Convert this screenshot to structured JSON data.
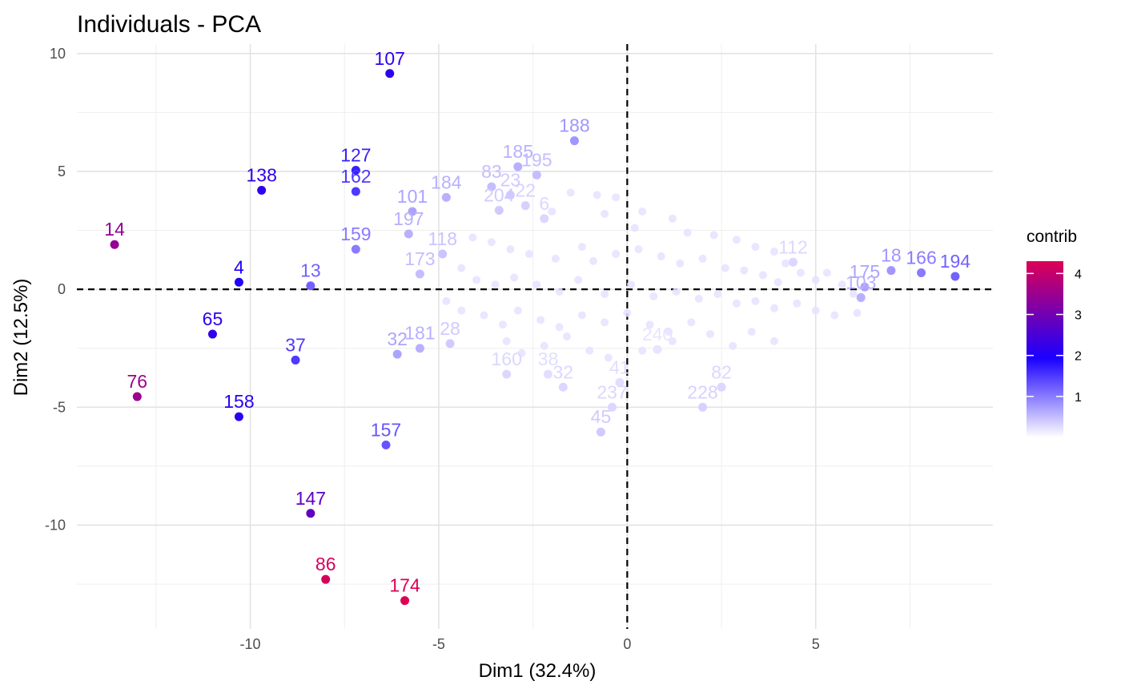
{
  "chart_data": {
    "type": "scatter",
    "title": "Individuals - PCA",
    "xlabel": "Dim1 (32.4%)",
    "ylabel": "Dim2 (12.5%)",
    "xlim": [
      -14.6,
      9.7
    ],
    "ylim": [
      -14.4,
      10.4
    ],
    "x_ticks": [
      -10,
      -5,
      0,
      5
    ],
    "y_ticks": [
      -10,
      -5,
      0,
      5,
      10
    ],
    "x_tick_labels": [
      "-10",
      "-5",
      "0",
      "5"
    ],
    "y_tick_labels": [
      "-10",
      "-5",
      "0",
      "5",
      "10"
    ],
    "grid": true,
    "reference_lines": {
      "x": 0,
      "y": 0,
      "style": "dashed"
    },
    "legend": {
      "title": "contrib",
      "position": "right",
      "range": [
        0,
        4.3
      ],
      "ticks": [
        1,
        2,
        3,
        4
      ],
      "tick_labels": [
        "1",
        "2",
        "3",
        "4"
      ],
      "gradient": [
        "#ffffff",
        "#1a00ff",
        "#dd0055"
      ]
    },
    "labeled_points": [
      {
        "label": "107",
        "x": -6.3,
        "y": 9.15,
        "contrib": 2.2
      },
      {
        "label": "188",
        "x": -1.4,
        "y": 6.3,
        "contrib": 0.8
      },
      {
        "label": "185",
        "x": -2.9,
        "y": 5.2,
        "contrib": 0.6
      },
      {
        "label": "195",
        "x": -2.4,
        "y": 4.85,
        "contrib": 0.5
      },
      {
        "label": "127",
        "x": -7.2,
        "y": 5.05,
        "contrib": 1.7
      },
      {
        "label": "162",
        "x": -7.2,
        "y": 4.15,
        "contrib": 1.5
      },
      {
        "label": "138",
        "x": -9.7,
        "y": 4.2,
        "contrib": 2.2
      },
      {
        "label": "184",
        "x": -4.8,
        "y": 3.9,
        "contrib": 0.6
      },
      {
        "label": "83",
        "x": -3.6,
        "y": 4.35,
        "contrib": 0.5
      },
      {
        "label": "23",
        "x": -3.1,
        "y": 4.0,
        "contrib": 0.4
      },
      {
        "label": "204",
        "x": -3.4,
        "y": 3.35,
        "contrib": 0.4
      },
      {
        "label": "22",
        "x": -2.7,
        "y": 3.55,
        "contrib": 0.35
      },
      {
        "label": "101",
        "x": -5.7,
        "y": 3.3,
        "contrib": 0.7
      },
      {
        "label": "197",
        "x": -5.8,
        "y": 2.35,
        "contrib": 0.6
      },
      {
        "label": "6",
        "x": -2.2,
        "y": 3.0,
        "contrib": 0.3
      },
      {
        "label": "14",
        "x": -13.6,
        "y": 1.9,
        "contrib": 3.4
      },
      {
        "label": "159",
        "x": -7.2,
        "y": 1.7,
        "contrib": 1.0
      },
      {
        "label": "118",
        "x": -4.9,
        "y": 1.5,
        "contrib": 0.45
      },
      {
        "label": "173",
        "x": -5.5,
        "y": 0.65,
        "contrib": 0.5
      },
      {
        "label": "4",
        "x": -10.3,
        "y": 0.3,
        "contrib": 2.0
      },
      {
        "label": "13",
        "x": -8.4,
        "y": 0.15,
        "contrib": 1.2
      },
      {
        "label": "65",
        "x": -11.0,
        "y": -1.9,
        "contrib": 2.2
      },
      {
        "label": "37",
        "x": -8.8,
        "y": -3.0,
        "contrib": 1.5
      },
      {
        "label": "32",
        "x": -6.1,
        "y": -2.75,
        "contrib": 0.7
      },
      {
        "label": "181",
        "x": -5.5,
        "y": -2.5,
        "contrib": 0.6
      },
      {
        "label": "28",
        "x": -4.7,
        "y": -2.3,
        "contrib": 0.4
      },
      {
        "label": "76",
        "x": -13.0,
        "y": -4.55,
        "contrib": 3.5
      },
      {
        "label": "158",
        "x": -10.3,
        "y": -5.4,
        "contrib": 2.1
      },
      {
        "label": "157",
        "x": -6.4,
        "y": -6.6,
        "contrib": 1.3
      },
      {
        "label": "147",
        "x": -8.4,
        "y": -9.5,
        "contrib": 2.8
      },
      {
        "label": "86",
        "x": -8.0,
        "y": -12.3,
        "contrib": 4.2
      },
      {
        "label": "174",
        "x": -5.9,
        "y": -13.2,
        "contrib": 4.3
      },
      {
        "label": "160",
        "x": -3.2,
        "y": -3.6,
        "contrib": 0.3
      },
      {
        "label": "38",
        "x": -2.1,
        "y": -3.6,
        "contrib": 0.25
      },
      {
        "label": "32",
        "x": -1.7,
        "y": -4.15,
        "contrib": 0.3
      },
      {
        "label": "41",
        "x": -0.2,
        "y": -3.95,
        "contrib": 0.25
      },
      {
        "label": "237",
        "x": -0.4,
        "y": -5.0,
        "contrib": 0.3
      },
      {
        "label": "45",
        "x": -0.7,
        "y": -6.05,
        "contrib": 0.4
      },
      {
        "label": "240",
        "x": 0.8,
        "y": -2.55,
        "contrib": 0.2
      },
      {
        "label": "228",
        "x": 2.0,
        "y": -5.0,
        "contrib": 0.35
      },
      {
        "label": "82",
        "x": 2.5,
        "y": -4.15,
        "contrib": 0.3
      },
      {
        "label": "112",
        "x": 4.4,
        "y": 1.15,
        "contrib": 0.3
      },
      {
        "label": "18",
        "x": 7.0,
        "y": 0.8,
        "contrib": 0.8
      },
      {
        "label": "166",
        "x": 7.8,
        "y": 0.7,
        "contrib": 1.0
      },
      {
        "label": "194",
        "x": 8.7,
        "y": 0.55,
        "contrib": 1.2
      },
      {
        "label": "175",
        "x": 6.3,
        "y": 0.1,
        "contrib": 0.7
      },
      {
        "label": "103",
        "x": 6.2,
        "y": -0.35,
        "contrib": 0.6
      }
    ],
    "faint_points": [
      [
        -1.5,
        4.1
      ],
      [
        -0.8,
        4.0
      ],
      [
        -0.3,
        3.9
      ],
      [
        -2.0,
        3.3
      ],
      [
        -0.6,
        3.2
      ],
      [
        0.4,
        3.3
      ],
      [
        1.2,
        3.0
      ],
      [
        0.2,
        2.6
      ],
      [
        1.6,
        2.4
      ],
      [
        2.3,
        2.3
      ],
      [
        2.9,
        2.1
      ],
      [
        3.4,
        1.8
      ],
      [
        3.9,
        1.6
      ],
      [
        4.2,
        1.1
      ],
      [
        -4.1,
        2.2
      ],
      [
        -3.6,
        2.0
      ],
      [
        -3.1,
        1.7
      ],
      [
        -2.6,
        1.5
      ],
      [
        -1.9,
        1.3
      ],
      [
        -1.2,
        1.8
      ],
      [
        -0.9,
        1.2
      ],
      [
        -0.3,
        1.5
      ],
      [
        0.3,
        1.7
      ],
      [
        0.9,
        1.4
      ],
      [
        1.4,
        1.1
      ],
      [
        2.0,
        1.3
      ],
      [
        2.6,
        0.9
      ],
      [
        3.1,
        0.8
      ],
      [
        3.6,
        0.6
      ],
      [
        4.0,
        0.3
      ],
      [
        4.6,
        0.7
      ],
      [
        5.0,
        0.4
      ],
      [
        5.3,
        0.7
      ],
      [
        5.7,
        0.2
      ],
      [
        6.0,
        -0.2
      ],
      [
        -4.4,
        0.9
      ],
      [
        -4.0,
        0.4
      ],
      [
        -3.5,
        0.2
      ],
      [
        -3.0,
        0.5
      ],
      [
        -2.4,
        0.2
      ],
      [
        -1.8,
        -0.1
      ],
      [
        -1.3,
        0.4
      ],
      [
        -0.6,
        -0.2
      ],
      [
        0.1,
        0.2
      ],
      [
        0.7,
        -0.3
      ],
      [
        1.3,
        -0.1
      ],
      [
        1.9,
        -0.4
      ],
      [
        2.4,
        -0.2
      ],
      [
        2.9,
        -0.6
      ],
      [
        3.4,
        -0.5
      ],
      [
        3.9,
        -0.8
      ],
      [
        4.5,
        -0.6
      ],
      [
        5.0,
        -0.9
      ],
      [
        5.5,
        -1.1
      ],
      [
        6.1,
        -1.0
      ],
      [
        -4.8,
        -0.5
      ],
      [
        -4.4,
        -0.9
      ],
      [
        -3.8,
        -1.1
      ],
      [
        -3.3,
        -1.5
      ],
      [
        -2.9,
        -0.9
      ],
      [
        -2.3,
        -1.3
      ],
      [
        -1.8,
        -1.6
      ],
      [
        -1.2,
        -1.1
      ],
      [
        -0.6,
        -1.4
      ],
      [
        0.0,
        -1.0
      ],
      [
        0.6,
        -1.5
      ],
      [
        1.1,
        -1.8
      ],
      [
        1.7,
        -1.4
      ],
      [
        2.2,
        -1.9
      ],
      [
        2.8,
        -2.4
      ],
      [
        3.3,
        -1.8
      ],
      [
        3.9,
        -2.2
      ],
      [
        -3.2,
        -2.2
      ],
      [
        -2.8,
        -2.7
      ],
      [
        -2.2,
        -2.4
      ],
      [
        -1.6,
        -2.0
      ],
      [
        -1.0,
        -2.6
      ],
      [
        -0.5,
        -2.9
      ],
      [
        0.4,
        -2.6
      ],
      [
        1.2,
        -2.2
      ]
    ]
  }
}
